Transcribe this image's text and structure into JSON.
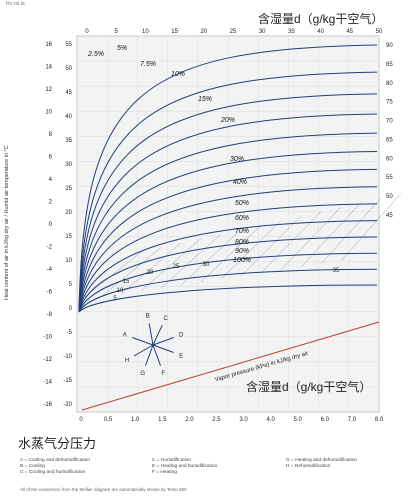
{
  "header": {
    "corner_note": "Ro.rel.la",
    "top_title": "含湿量d（g/kg干空气）",
    "bottom_title": "含湿量d（g/kg干空气）",
    "y_axis_label": "Heat content of air in kJ/kg dry air / Humid air temperature in °C",
    "x_axis_bottom_label": "水蒸气分压力",
    "red_line_label": "Vapor pressure (kPa) in kJ/kg dry air"
  },
  "legend": {
    "col1": [
      "A = Cooling and dehumidification",
      "B = Cooling",
      "C = Cooling and humidification"
    ],
    "col2": [
      "C = Humidification",
      "E = Heating and humidification",
      "F = Heating"
    ],
    "col3": [
      "G = Heating and dehumidification",
      "H = Dehumidification"
    ]
  },
  "footnote": "All of the conversion from the Mollier diagram are automatically shown by Testo 650",
  "protractor_letters": [
    "A",
    "B",
    "C",
    "D",
    "E",
    "F",
    "G",
    "H"
  ],
  "colors": {
    "rh_curve": "#1f3f7a",
    "isotherm": "#1f3f7a",
    "reference_line": "#c0392b",
    "grid": "#dddddd",
    "protractor": "#1f3f7a"
  },
  "chart_data": {
    "type": "line",
    "x_label": "含湿量d（g/kg干空气）",
    "y_label": "Heat content of air in kJ/kg dry air / Humid air temperature in °C",
    "x_range": [
      0,
      50
    ],
    "y_range": [
      -20,
      56
    ],
    "top_ticks": [
      "0",
      "5",
      "10",
      "15",
      "20",
      "25",
      "30",
      "35",
      "40",
      "45",
      "50"
    ],
    "bottom_ticks": [
      "0",
      "0.5",
      "1.0",
      "1.5",
      "2.0",
      "2.5",
      "3.0",
      "4.0",
      "5.0",
      "6.0",
      "7.0",
      "8.0"
    ],
    "left_inner_ticks": [
      "55",
      "50",
      "45",
      "40",
      "35",
      "30",
      "25",
      "20",
      "15",
      "10",
      "5",
      "0",
      "-5",
      "-10",
      "-15",
      "-20"
    ],
    "left_outer_ticks": [
      "16",
      "14",
      "12",
      "10",
      "8",
      "6",
      "4",
      "2",
      "0",
      "-2",
      "-4",
      "-6",
      "-8",
      "-10",
      "-12",
      "-14",
      "-16"
    ],
    "right_ticks": [
      "90",
      "85",
      "80",
      "75",
      "70",
      "65",
      "60",
      "55",
      "50",
      "45"
    ],
    "rh_curves": [
      {
        "name": "2.5%"
      },
      {
        "name": "5%"
      },
      {
        "name": "7.5%"
      },
      {
        "name": "10%"
      },
      {
        "name": "15%"
      },
      {
        "name": "20%"
      },
      {
        "name": "30%"
      },
      {
        "name": "40%"
      },
      {
        "name": "50%"
      },
      {
        "name": "60%"
      },
      {
        "name": "70%"
      },
      {
        "name": "80%"
      },
      {
        "name": "90%"
      },
      {
        "name": "100%"
      }
    ],
    "enthalpy_labels": [
      "5",
      "10",
      "15",
      "20",
      "25",
      "30",
      "35"
    ]
  }
}
